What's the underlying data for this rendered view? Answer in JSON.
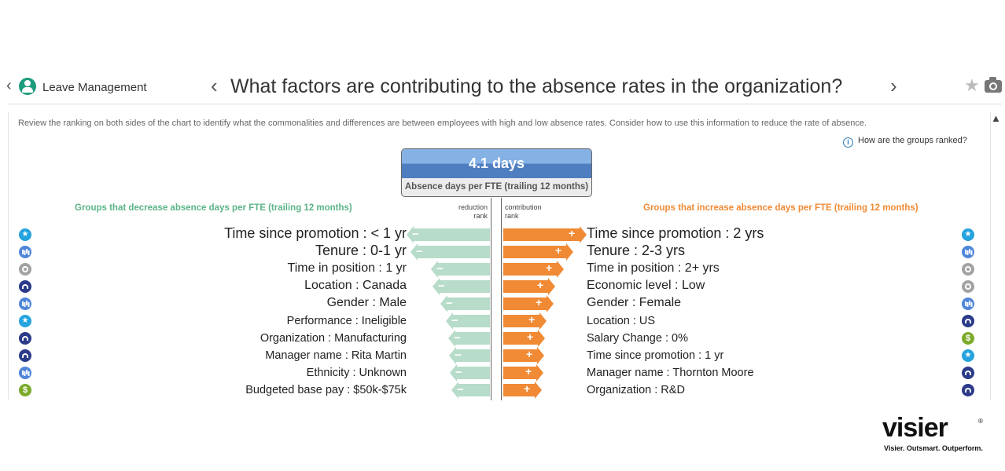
{
  "header": {
    "app_name": "Leave Management",
    "question": "What factors are contributing to the absence rates in the organization?"
  },
  "description": "Review the ranking on both sides of the chart to identify what the commonalities and differences are between employees with high and low absence rates. Consider how to use this information to reduce the rate of absence.",
  "info_link": "How are the groups ranked?",
  "kpi": {
    "value": "4.1 days",
    "label": "Absence days per FTE (trailing 12 months)"
  },
  "left_heading": "Groups that decrease absence days per FTE (trailing 12 months)",
  "right_heading": "Groups that increase absence days per FTE (trailing 12 months)",
  "axis": {
    "left_line1": "reduction",
    "left_line2": "rank",
    "right_line1": "contribution",
    "right_line2": "rank"
  },
  "colors": {
    "decrease": "#b7dcc9",
    "increase": "#f08a35",
    "kpi_blue": "#4f7ec0",
    "left_heading": "#5bb486",
    "right_heading": "#f08a35"
  },
  "chart_data": {
    "type": "bar",
    "decrease_groups": [
      {
        "label": "Time since promotion : < 1 yr",
        "icon": "star-icon",
        "rank_strength": 100
      },
      {
        "label": "Tenure : 0-1 yr",
        "icon": "bar-chart-icon",
        "rank_strength": 95
      },
      {
        "label": "Time in position : 1 yr",
        "icon": "ring-icon",
        "rank_strength": 68
      },
      {
        "label": "Location : Canada",
        "icon": "dna-icon",
        "rank_strength": 66
      },
      {
        "label": "Gender : Male",
        "icon": "bar-chart-icon",
        "rank_strength": 56
      },
      {
        "label": "Performance : Ineligible",
        "icon": "star-icon",
        "rank_strength": 48
      },
      {
        "label": "Organization : Manufacturing",
        "icon": "dna-icon",
        "rank_strength": 45
      },
      {
        "label": "Manager name : Rita Martin",
        "icon": "dna-icon",
        "rank_strength": 44
      },
      {
        "label": "Ethnicity : Unknown",
        "icon": "bar-chart-icon",
        "rank_strength": 43
      },
      {
        "label": "Budgeted base pay : $50k-$75k",
        "icon": "dollar-icon",
        "rank_strength": 41
      }
    ],
    "increase_groups": [
      {
        "label": "Time since promotion : 2 yrs",
        "icon": "star-icon",
        "rank_strength": 100
      },
      {
        "label": "Tenure : 2-3 yrs",
        "icon": "bar-chart-icon",
        "rank_strength": 82
      },
      {
        "label": "Time in position : 2+ yrs",
        "icon": "ring-icon",
        "rank_strength": 70
      },
      {
        "label": "Economic level : Low",
        "icon": "ring-icon",
        "rank_strength": 59
      },
      {
        "label": "Gender : Female",
        "icon": "bar-chart-icon",
        "rank_strength": 57
      },
      {
        "label": "Location : US",
        "icon": "dna-icon",
        "rank_strength": 47
      },
      {
        "label": "Salary Change : 0%",
        "icon": "dollar-icon",
        "rank_strength": 45
      },
      {
        "label": "Time since promotion : 1 yr",
        "icon": "star-icon",
        "rank_strength": 44
      },
      {
        "label": "Manager name : Thornton Moore",
        "icon": "dna-icon",
        "rank_strength": 43
      },
      {
        "label": "Organization : R&D",
        "icon": "dna-icon",
        "rank_strength": 41
      }
    ]
  },
  "logo": {
    "word": "visier",
    "registered": "®",
    "tagline": "Visier. Outsmart. Outperform."
  }
}
